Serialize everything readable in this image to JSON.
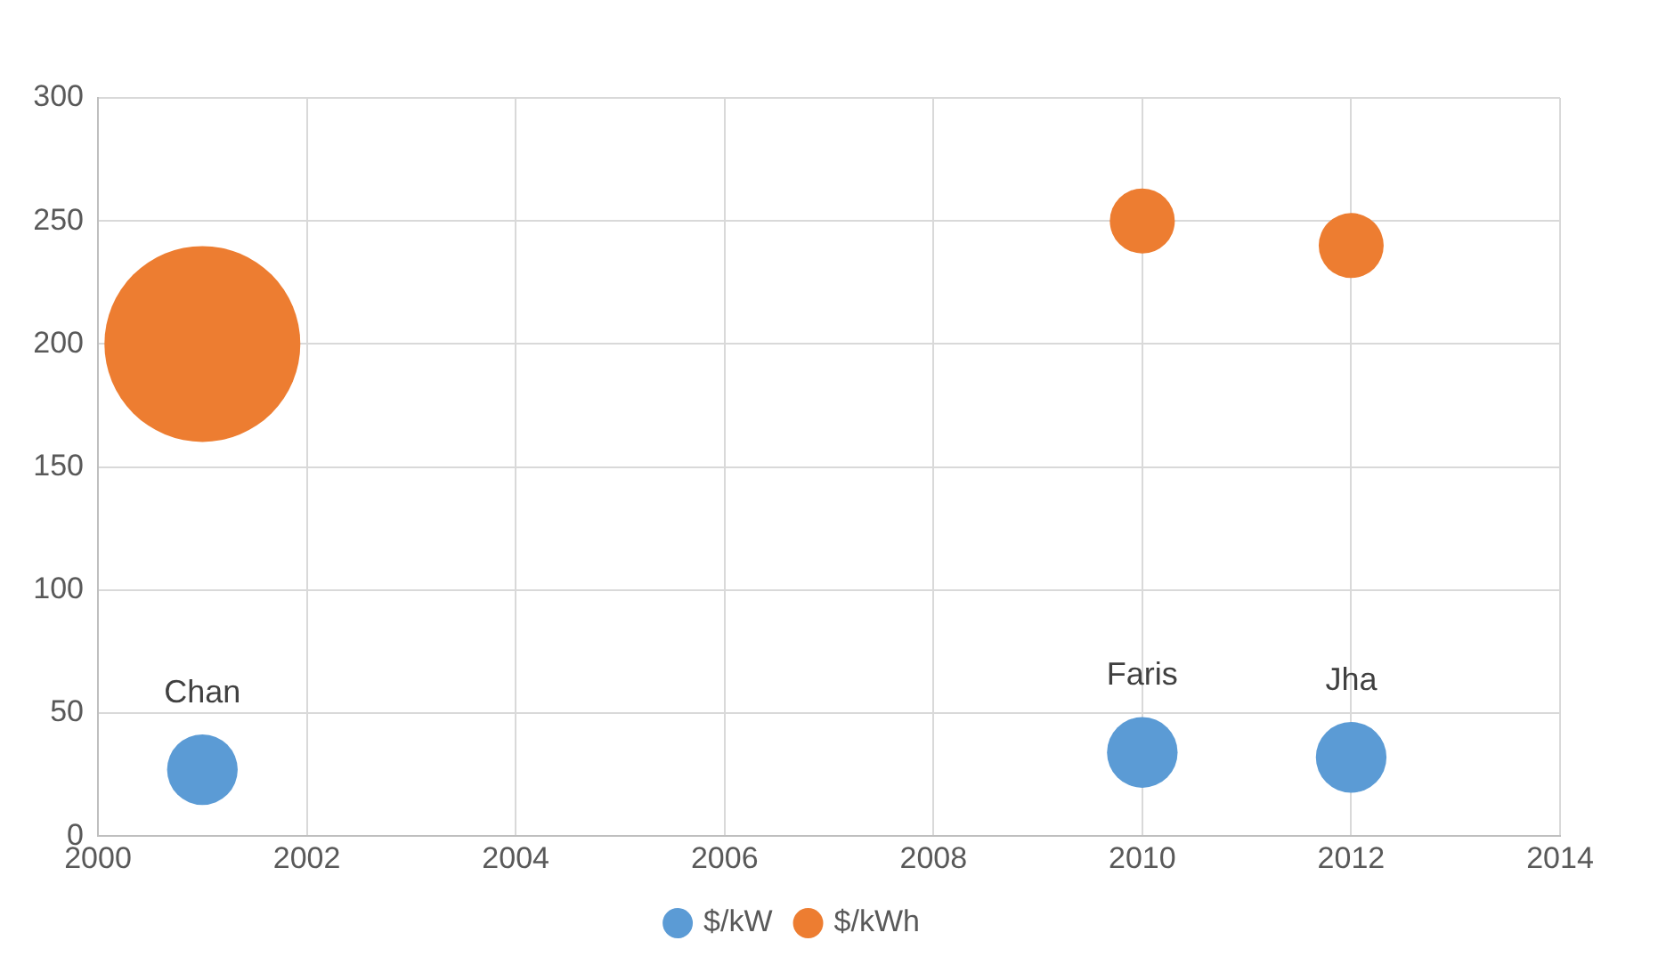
{
  "chart_data": {
    "type": "bubble",
    "xlim": [
      2000,
      2014
    ],
    "xticks": [
      2000,
      2002,
      2004,
      2006,
      2008,
      2010,
      2012,
      2014
    ],
    "ylim": [
      0,
      300
    ],
    "yticks": [
      0,
      50,
      100,
      150,
      200,
      250,
      300
    ],
    "grid": true,
    "legend": "bottom",
    "series": [
      {
        "name": "$/kW",
        "color": "#5b9bd5",
        "x": [
          2001,
          2010,
          2012
        ],
        "values": [
          27,
          34,
          32
        ],
        "sizes": [
          0.13,
          0.13,
          0.13
        ]
      },
      {
        "name": "$/kWh",
        "color": "#ed7d31",
        "x": [
          2001,
          2010,
          2012
        ],
        "values": [
          200,
          250,
          240
        ],
        "sizes": [
          1,
          0.11,
          0.11
        ]
      }
    ],
    "annotations": [
      {
        "text": "Chan",
        "x": 2001,
        "y": 27
      },
      {
        "text": "Faris",
        "x": 2010,
        "y": 34
      },
      {
        "text": "Jha",
        "x": 2012,
        "y": 32
      }
    ]
  }
}
